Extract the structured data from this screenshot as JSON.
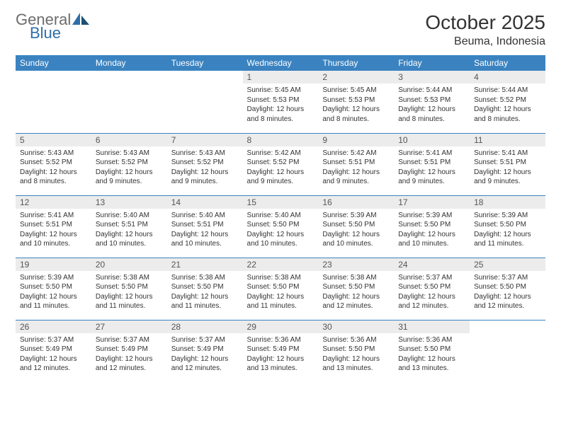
{
  "colors": {
    "header_bg": "#3b83c0",
    "header_text": "#ffffff",
    "daynum_bg": "#ececec",
    "daynum_text": "#555555",
    "body_text": "#333333",
    "row_border": "#3b83c0",
    "logo_gray": "#6c6c6c",
    "logo_blue": "#2f6ea8",
    "page_bg": "#ffffff"
  },
  "logo": {
    "word1": "General",
    "word2": "Blue"
  },
  "title": "October 2025",
  "location": "Beuma, Indonesia",
  "weekdays": [
    "Sunday",
    "Monday",
    "Tuesday",
    "Wednesday",
    "Thursday",
    "Friday",
    "Saturday"
  ],
  "typography": {
    "title_fontsize": 28,
    "location_fontsize": 16,
    "weekday_fontsize": 12,
    "daynum_fontsize": 12,
    "body_fontsize": 10
  },
  "weeks": [
    [
      null,
      null,
      null,
      {
        "n": "1",
        "sunrise": "5:45 AM",
        "sunset": "5:53 PM",
        "daylight": "12 hours and 8 minutes."
      },
      {
        "n": "2",
        "sunrise": "5:45 AM",
        "sunset": "5:53 PM",
        "daylight": "12 hours and 8 minutes."
      },
      {
        "n": "3",
        "sunrise": "5:44 AM",
        "sunset": "5:53 PM",
        "daylight": "12 hours and 8 minutes."
      },
      {
        "n": "4",
        "sunrise": "5:44 AM",
        "sunset": "5:52 PM",
        "daylight": "12 hours and 8 minutes."
      }
    ],
    [
      {
        "n": "5",
        "sunrise": "5:43 AM",
        "sunset": "5:52 PM",
        "daylight": "12 hours and 8 minutes."
      },
      {
        "n": "6",
        "sunrise": "5:43 AM",
        "sunset": "5:52 PM",
        "daylight": "12 hours and 9 minutes."
      },
      {
        "n": "7",
        "sunrise": "5:43 AM",
        "sunset": "5:52 PM",
        "daylight": "12 hours and 9 minutes."
      },
      {
        "n": "8",
        "sunrise": "5:42 AM",
        "sunset": "5:52 PM",
        "daylight": "12 hours and 9 minutes."
      },
      {
        "n": "9",
        "sunrise": "5:42 AM",
        "sunset": "5:51 PM",
        "daylight": "12 hours and 9 minutes."
      },
      {
        "n": "10",
        "sunrise": "5:41 AM",
        "sunset": "5:51 PM",
        "daylight": "12 hours and 9 minutes."
      },
      {
        "n": "11",
        "sunrise": "5:41 AM",
        "sunset": "5:51 PM",
        "daylight": "12 hours and 9 minutes."
      }
    ],
    [
      {
        "n": "12",
        "sunrise": "5:41 AM",
        "sunset": "5:51 PM",
        "daylight": "12 hours and 10 minutes."
      },
      {
        "n": "13",
        "sunrise": "5:40 AM",
        "sunset": "5:51 PM",
        "daylight": "12 hours and 10 minutes."
      },
      {
        "n": "14",
        "sunrise": "5:40 AM",
        "sunset": "5:51 PM",
        "daylight": "12 hours and 10 minutes."
      },
      {
        "n": "15",
        "sunrise": "5:40 AM",
        "sunset": "5:50 PM",
        "daylight": "12 hours and 10 minutes."
      },
      {
        "n": "16",
        "sunrise": "5:39 AM",
        "sunset": "5:50 PM",
        "daylight": "12 hours and 10 minutes."
      },
      {
        "n": "17",
        "sunrise": "5:39 AM",
        "sunset": "5:50 PM",
        "daylight": "12 hours and 10 minutes."
      },
      {
        "n": "18",
        "sunrise": "5:39 AM",
        "sunset": "5:50 PM",
        "daylight": "12 hours and 11 minutes."
      }
    ],
    [
      {
        "n": "19",
        "sunrise": "5:39 AM",
        "sunset": "5:50 PM",
        "daylight": "12 hours and 11 minutes."
      },
      {
        "n": "20",
        "sunrise": "5:38 AM",
        "sunset": "5:50 PM",
        "daylight": "12 hours and 11 minutes."
      },
      {
        "n": "21",
        "sunrise": "5:38 AM",
        "sunset": "5:50 PM",
        "daylight": "12 hours and 11 minutes."
      },
      {
        "n": "22",
        "sunrise": "5:38 AM",
        "sunset": "5:50 PM",
        "daylight": "12 hours and 11 minutes."
      },
      {
        "n": "23",
        "sunrise": "5:38 AM",
        "sunset": "5:50 PM",
        "daylight": "12 hours and 12 minutes."
      },
      {
        "n": "24",
        "sunrise": "5:37 AM",
        "sunset": "5:50 PM",
        "daylight": "12 hours and 12 minutes."
      },
      {
        "n": "25",
        "sunrise": "5:37 AM",
        "sunset": "5:50 PM",
        "daylight": "12 hours and 12 minutes."
      }
    ],
    [
      {
        "n": "26",
        "sunrise": "5:37 AM",
        "sunset": "5:49 PM",
        "daylight": "12 hours and 12 minutes."
      },
      {
        "n": "27",
        "sunrise": "5:37 AM",
        "sunset": "5:49 PM",
        "daylight": "12 hours and 12 minutes."
      },
      {
        "n": "28",
        "sunrise": "5:37 AM",
        "sunset": "5:49 PM",
        "daylight": "12 hours and 12 minutes."
      },
      {
        "n": "29",
        "sunrise": "5:36 AM",
        "sunset": "5:49 PM",
        "daylight": "12 hours and 13 minutes."
      },
      {
        "n": "30",
        "sunrise": "5:36 AM",
        "sunset": "5:50 PM",
        "daylight": "12 hours and 13 minutes."
      },
      {
        "n": "31",
        "sunrise": "5:36 AM",
        "sunset": "5:50 PM",
        "daylight": "12 hours and 13 minutes."
      },
      null
    ]
  ],
  "labels": {
    "sunrise": "Sunrise:",
    "sunset": "Sunset:",
    "daylight": "Daylight:"
  }
}
